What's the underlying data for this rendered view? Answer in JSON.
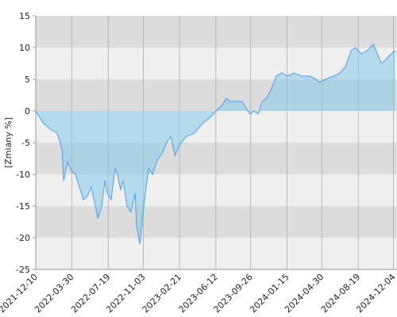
{
  "chart_data": {
    "type": "area",
    "y_label": "[Zmiany %]",
    "x": [
      "2021-12-10",
      "2022-01-03",
      "2022-01-27",
      "2022-02-13",
      "2022-02-28",
      "2022-03-05",
      "2022-03-17",
      "2022-03-29",
      "2022-04-10",
      "2022-04-22",
      "2022-05-04",
      "2022-05-16",
      "2022-05-28",
      "2022-06-10",
      "2022-06-17",
      "2022-06-29",
      "2022-07-09",
      "2022-07-16",
      "2022-07-28",
      "2022-08-09",
      "2022-08-16",
      "2022-08-26",
      "2022-09-02",
      "2022-09-14",
      "2022-09-26",
      "2022-10-09",
      "2022-10-13",
      "2022-10-23",
      "2022-11-02",
      "2022-11-09",
      "2022-11-19",
      "2022-12-01",
      "2022-12-13",
      "2023-01-01",
      "2023-01-13",
      "2023-01-25",
      "2023-02-07",
      "2023-02-26",
      "2023-03-15",
      "2023-04-08",
      "2023-05-02",
      "2023-05-26",
      "2023-06-12",
      "2023-07-02",
      "2023-07-14",
      "2023-07-26",
      "2023-08-12",
      "2023-08-31",
      "2023-09-24",
      "2023-10-07",
      "2023-10-19",
      "2023-10-31",
      "2023-11-12",
      "2023-11-24",
      "2023-12-13",
      "2023-12-30",
      "2024-01-16",
      "2024-02-05",
      "2024-02-29",
      "2024-03-24",
      "2024-04-12",
      "2024-04-22",
      "2024-05-11",
      "2024-06-05",
      "2024-06-24",
      "2024-07-11",
      "2024-07-28",
      "2024-08-11",
      "2024-08-28",
      "2024-09-14",
      "2024-10-04",
      "2024-10-16",
      "2024-10-28",
      "2024-11-09",
      "2024-11-26",
      "2024-12-10"
    ],
    "series": [
      {
        "color": "#4a9ff0",
        "fill": "#8ccbe8",
        "values": [
          0,
          -2,
          -3,
          -3.5,
          -6,
          -11,
          -8,
          -9.5,
          -10,
          -12,
          -14,
          -13.5,
          -12,
          -15,
          -17,
          -15,
          -11,
          -13,
          -14,
          -9,
          -10,
          -12.5,
          -11,
          -15,
          -16,
          -13,
          -18,
          -21,
          -16,
          -13,
          -9,
          -10,
          -8,
          -6.5,
          -5,
          -4,
          -7,
          -5,
          -4,
          -3.5,
          -2,
          -1,
          0,
          1,
          2,
          1.5,
          1.5,
          1.5,
          -0.5,
          0,
          -0.5,
          1.5,
          2,
          3,
          5.5,
          6,
          5.5,
          6,
          5.5,
          5.5,
          5,
          4.5,
          5,
          5.5,
          6,
          7,
          9.5,
          10,
          9,
          9.5,
          10.5,
          9,
          7.5,
          8,
          9,
          9.5
        ]
      }
    ],
    "xlim": [
      "2021-12-10",
      "2024-12-15"
    ],
    "xticks": [
      "2021-12-10",
      "2022-03-30",
      "2022-07-19",
      "2022-11-03",
      "2023-02-21",
      "2023-06-12",
      "2023-09-26",
      "2024-01-15",
      "2024-04-30",
      "2024-08-19",
      "2024-12-04"
    ],
    "ylim": [
      -25,
      15
    ],
    "yticks": [
      15,
      10,
      5,
      0,
      -5,
      -10,
      -15,
      -20,
      -25
    ],
    "grid": true
  }
}
